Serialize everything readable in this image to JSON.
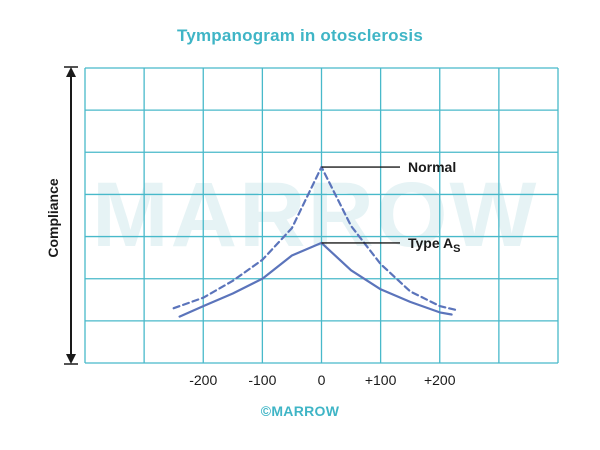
{
  "header": {
    "title": "Tympanogram in otosclerosis"
  },
  "footer": {
    "credit": "©MARROW"
  },
  "watermark": {
    "text": "MARROW"
  },
  "colors": {
    "title": "#3fb5c6",
    "grid": "#48b9ca",
    "curve": "#5b74bb",
    "axis_arrow": "#1a1a1a",
    "credit": "#3fb5c6",
    "watermark": "#e6f3f5"
  },
  "chart_data": {
    "type": "line",
    "title": "Tympanogram in otosclerosis",
    "ylabel": "Compliance",
    "xlabel": "",
    "x_tick_labels": [
      "-200",
      "-100",
      "0",
      "+100",
      "+200"
    ],
    "x_ticks": [
      -200,
      -100,
      0,
      100,
      200
    ],
    "xlim": [
      -400,
      400
    ],
    "ylim": [
      0,
      7
    ],
    "grid": true,
    "series": [
      {
        "name": "Normal",
        "style": "dashed",
        "label": "Normal",
        "points": [
          [
            -250,
            1.3
          ],
          [
            -200,
            1.55
          ],
          [
            -150,
            1.95
          ],
          [
            -100,
            2.45
          ],
          [
            -50,
            3.2
          ],
          [
            0,
            4.65
          ],
          [
            50,
            3.25
          ],
          [
            100,
            2.35
          ],
          [
            150,
            1.7
          ],
          [
            200,
            1.35
          ],
          [
            230,
            1.25
          ]
        ]
      },
      {
        "name": "Type As",
        "style": "solid",
        "label_main": "Type A",
        "label_sub": "S",
        "points": [
          [
            -240,
            1.1
          ],
          [
            -200,
            1.35
          ],
          [
            -150,
            1.65
          ],
          [
            -100,
            2.0
          ],
          [
            -50,
            2.55
          ],
          [
            0,
            2.85
          ],
          [
            50,
            2.2
          ],
          [
            100,
            1.75
          ],
          [
            150,
            1.45
          ],
          [
            200,
            1.2
          ],
          [
            220,
            1.15
          ]
        ]
      }
    ]
  }
}
